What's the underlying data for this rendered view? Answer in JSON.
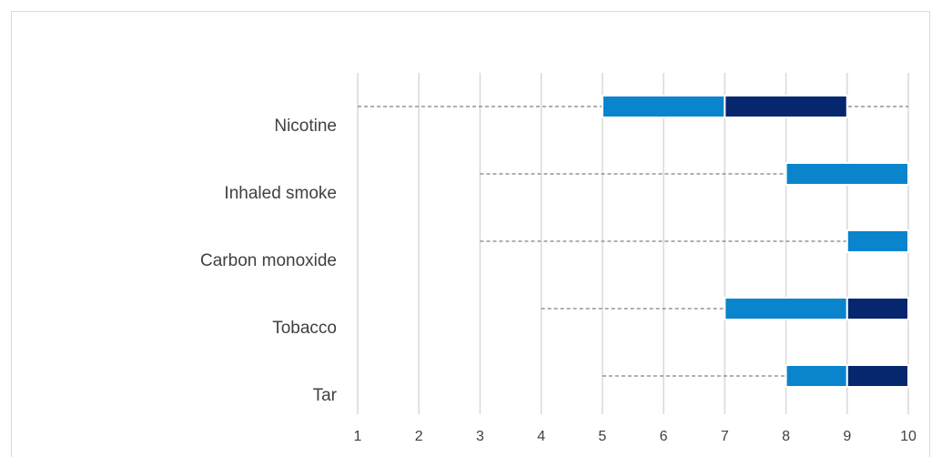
{
  "chart_data": {
    "type": "bar",
    "title": "",
    "xlabel": "",
    "ylabel": "",
    "xlim": [
      1,
      10
    ],
    "x_ticks": [
      "1",
      "2",
      "3",
      "4",
      "5",
      "6",
      "7",
      "8",
      "9",
      "10"
    ],
    "grid": "vertical",
    "categories": [
      "Nicotine",
      "Inhaled smoke",
      "Carbon monoxide",
      "Tobacco",
      "Tar"
    ],
    "rows": [
      {
        "category": "Nicotine",
        "range": [
          1,
          10
        ],
        "light": [
          5,
          7
        ],
        "dark": [
          7,
          9
        ]
      },
      {
        "category": "Inhaled smoke",
        "range": [
          3,
          10
        ],
        "light": [
          8,
          10
        ],
        "dark": null
      },
      {
        "category": "Carbon monoxide",
        "range": [
          3,
          10
        ],
        "light": [
          9,
          10
        ],
        "dark": null
      },
      {
        "category": "Tobacco",
        "range": [
          4,
          10
        ],
        "light": [
          7,
          9
        ],
        "dark": [
          9,
          10
        ]
      },
      {
        "category": "Tar",
        "range": [
          5,
          10
        ],
        "light": [
          8,
          9
        ],
        "dark": [
          9,
          10
        ]
      }
    ],
    "colors": {
      "light": "#0a84cc",
      "dark": "#06266e",
      "range_line": "#7f7f7f",
      "grid": "#d9d9d9"
    }
  }
}
